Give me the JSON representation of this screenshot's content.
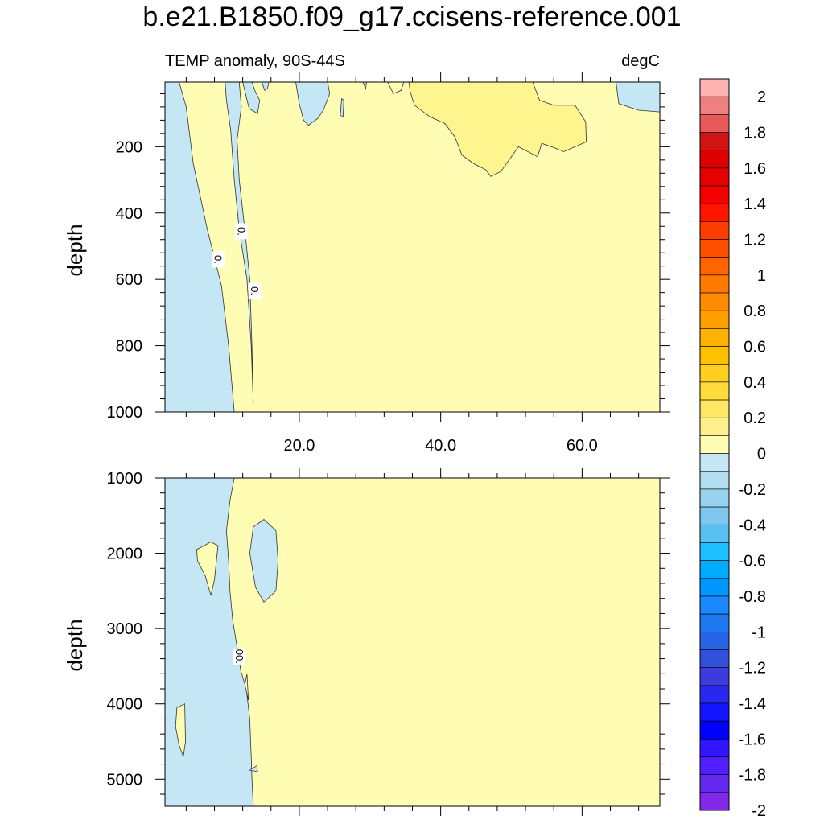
{
  "title": "b.e21.B1850.f09_g17.ccisens-reference.001",
  "colors": {
    "zero_to_pos": "#fffcb4",
    "pos_band": "#fff58e",
    "zero_to_neg": "#c5e6f4",
    "contour_line": "#333333"
  },
  "chart_data": [
    {
      "type": "heatmap",
      "panel": "top",
      "left_title": "TEMP anomaly, 90S-44S",
      "right_title": "degC",
      "xlabel": "",
      "ylabel": "depth",
      "xlim": [
        1,
        71
      ],
      "ylim": [
        1000,
        5
      ],
      "y_reversed": true,
      "x_ticks": [
        20.0,
        40.0,
        60.0
      ],
      "x_tick_labels": [
        "20.0",
        "40.0",
        "60.0"
      ],
      "y_ticks": [
        200,
        400,
        600,
        800,
        1000
      ],
      "y_tick_labels": [
        "200",
        "400",
        "600",
        "800",
        "1000"
      ],
      "contour_labels": [
        {
          "text": "0.",
          "x": 8.5,
          "y": 540
        },
        {
          "text": "0.",
          "x": 11.8,
          "y": 455
        },
        {
          "text": "0.",
          "x": 13.7,
          "y": 635
        }
      ],
      "regions": [
        {
          "value_range": [
            -0.1,
            0
          ],
          "points": [
            [
              1,
              5
            ],
            [
              3,
              5
            ],
            [
              4,
              80
            ],
            [
              5,
              250
            ],
            [
              7,
              450
            ],
            [
              9,
              620
            ],
            [
              10,
              800
            ],
            [
              10.8,
              1000
            ],
            [
              1,
              1000
            ]
          ]
        },
        {
          "value_range": [
            -0.1,
            0
          ],
          "points": [
            [
              9.5,
              5
            ],
            [
              11.5,
              5
            ],
            [
              11.8,
              80
            ],
            [
              11.2,
              180
            ],
            [
              11.5,
              300
            ],
            [
              12.3,
              450
            ],
            [
              13,
              600
            ],
            [
              13.3,
              800
            ],
            [
              13.5,
              975
            ],
            [
              13.2,
              800
            ],
            [
              12.6,
              600
            ],
            [
              11.5,
              450
            ],
            [
              10.8,
              300
            ],
            [
              10.3,
              150
            ],
            [
              9.7,
              60
            ]
          ]
        },
        {
          "value_range": [
            -0.1,
            0
          ],
          "points": [
            [
              12,
              5
            ],
            [
              13.3,
              5
            ],
            [
              13.7,
              30
            ],
            [
              14.4,
              60
            ],
            [
              14.1,
              100
            ],
            [
              12.9,
              85
            ]
          ]
        },
        {
          "value_range": [
            -0.1,
            0
          ],
          "points": [
            [
              14.7,
              5
            ],
            [
              15.7,
              5
            ],
            [
              15.5,
              25
            ],
            [
              15.1,
              30
            ]
          ]
        },
        {
          "value_range": [
            -0.1,
            0
          ],
          "points": [
            [
              19.5,
              5
            ],
            [
              24,
              5
            ],
            [
              24.3,
              40
            ],
            [
              23.4,
              90
            ],
            [
              22.6,
              115
            ],
            [
              21.3,
              135
            ],
            [
              20.6,
              120
            ],
            [
              20,
              70
            ]
          ]
        },
        {
          "value_range": [
            -0.1,
            0
          ],
          "points": [
            [
              26,
              55
            ],
            [
              26.3,
              60
            ],
            [
              26.2,
              110
            ],
            [
              25.8,
              105
            ]
          ]
        },
        {
          "value_range": [
            -0.1,
            0
          ],
          "points": [
            [
              29,
              5
            ],
            [
              29.5,
              5
            ],
            [
              29.4,
              25
            ]
          ]
        },
        {
          "value_range": [
            -0.1,
            0
          ],
          "points": [
            [
              47.6,
              60
            ],
            [
              47.9,
              65
            ],
            [
              47.9,
              95
            ],
            [
              47.6,
              90
            ]
          ]
        },
        {
          "value_range": [
            -0.1,
            0
          ],
          "points": [
            [
              64.8,
              5
            ],
            [
              71,
              5
            ],
            [
              71,
              95
            ],
            [
              68,
              90
            ],
            [
              65.2,
              70
            ]
          ]
        },
        {
          "value_range": [
            0,
            0.1
          ],
          "points": [
            [
              32.5,
              5
            ],
            [
              34.8,
              5
            ],
            [
              34.4,
              30
            ],
            [
              33.3,
              40
            ]
          ]
        },
        {
          "value_range": [
            0.1,
            0.2
          ],
          "points": [
            [
              35.5,
              5
            ],
            [
              41,
              5
            ],
            [
              45,
              5
            ],
            [
              53,
              5
            ],
            [
              54,
              60
            ],
            [
              56,
              75
            ],
            [
              59,
              75
            ],
            [
              60.5,
              125
            ],
            [
              60.6,
              185
            ],
            [
              57.4,
              215
            ],
            [
              56.3,
              205
            ],
            [
              54.3,
              190
            ],
            [
              53.7,
              230
            ],
            [
              51,
              200
            ],
            [
              48.5,
              275
            ],
            [
              47.1,
              290
            ],
            [
              46.4,
              270
            ],
            [
              44.6,
              250
            ],
            [
              43,
              225
            ],
            [
              42,
              170
            ],
            [
              40.6,
              130
            ],
            [
              38.5,
              110
            ],
            [
              36.3,
              75
            ],
            [
              35.7,
              35
            ]
          ]
        }
      ]
    },
    {
      "type": "heatmap",
      "panel": "bottom",
      "xlabel": "",
      "ylabel": "depth",
      "xlim": [
        1,
        71
      ],
      "ylim": [
        5360,
        1000
      ],
      "y_reversed": true,
      "x_ticks": [
        20.0,
        40.0,
        60.0
      ],
      "y_ticks": [
        1000,
        2000,
        3000,
        4000,
        5000
      ],
      "y_tick_labels": [
        "1000",
        "2000",
        "3000",
        "4000",
        "5000"
      ],
      "contour_labels": [
        {
          "text": "00.",
          "x": 11.5,
          "y": 3370
        }
      ],
      "regions": [
        {
          "value_range": [
            -0.1,
            0
          ],
          "points": [
            [
              1,
              1000
            ],
            [
              10.8,
              1000
            ],
            [
              10.2,
              1300
            ],
            [
              9.7,
              1700
            ],
            [
              10,
              2100
            ],
            [
              10.2,
              2500
            ],
            [
              10.6,
              2900
            ],
            [
              11.3,
              3300
            ],
            [
              11.7,
              3550
            ],
            [
              12.5,
              3800
            ],
            [
              13,
              4200
            ],
            [
              13.2,
              4700
            ],
            [
              13.3,
              5000
            ],
            [
              13.5,
              5360
            ],
            [
              1,
              5360
            ]
          ]
        }
      ],
      "islands_positive": [
        {
          "value_range": [
            0,
            0.1
          ],
          "points": [
            [
              5.5,
              1950
            ],
            [
              7.5,
              1850
            ],
            [
              8.5,
              1900
            ],
            [
              8,
              2350
            ],
            [
              7.5,
              2560
            ],
            [
              6.7,
              2300
            ],
            [
              5.6,
              2100
            ]
          ]
        },
        {
          "value_range": [
            0,
            0.1
          ],
          "points": [
            [
              2.7,
              4050
            ],
            [
              3.8,
              4000
            ],
            [
              3.9,
              4500
            ],
            [
              3.6,
              4700
            ],
            [
              3,
              4550
            ],
            [
              2.5,
              4300
            ]
          ]
        },
        {
          "value_range": [
            -0.1,
            0
          ],
          "points": [
            [
              13.5,
              1650
            ],
            [
              15,
              1550
            ],
            [
              16.7,
              1700
            ],
            [
              17,
              2100
            ],
            [
              16.7,
              2500
            ],
            [
              15,
              2650
            ],
            [
              13.8,
              2450
            ],
            [
              13,
              2000
            ]
          ]
        },
        {
          "value_range": [
            0,
            0.1
          ],
          "points": [
            [
              12.6,
              3600
            ],
            [
              12.8,
              3950
            ],
            [
              12.3,
              3750
            ]
          ]
        },
        {
          "value_range": [
            -0.1,
            0
          ],
          "points": [
            [
              13,
              4880
            ],
            [
              14,
              4820
            ],
            [
              14.1,
              4900
            ]
          ]
        }
      ]
    }
  ],
  "colorbar": {
    "labels": [
      "2",
      "1.8",
      "1.6",
      "1.4",
      "1.2",
      "1",
      "0.8",
      "0.6",
      "0.4",
      "0.2",
      "0",
      "-0.2",
      "-0.4",
      "-0.6",
      "-0.8",
      "-1",
      "-1.2",
      "-1.4",
      "-1.6",
      "-1.8",
      "-2"
    ],
    "colors": [
      "#ffb4b4",
      "#f08080",
      "#e85a5a",
      "#d21414",
      "#dc0000",
      "#e60000",
      "#f50000",
      "#ff1400",
      "#ff3c00",
      "#ff5000",
      "#ff6400",
      "#ff7800",
      "#ff8c00",
      "#ffa000",
      "#ffb000",
      "#ffc000",
      "#ffd020",
      "#ffdc3c",
      "#ffe664",
      "#fff08c",
      "#fffcb4",
      "#c5e6f4",
      "#b0def0",
      "#98d2ee",
      "#7ec8f0",
      "#5ac0f2",
      "#1ec0ff",
      "#00aaff",
      "#0096ff",
      "#1a88ff",
      "#1e78f0",
      "#2864e6",
      "#3250dc",
      "#3c3cdc",
      "#2828f0",
      "#1414ff",
      "#0000ff",
      "#3214ff",
      "#501eff",
      "#6428f0",
      "#8228e6"
    ]
  }
}
